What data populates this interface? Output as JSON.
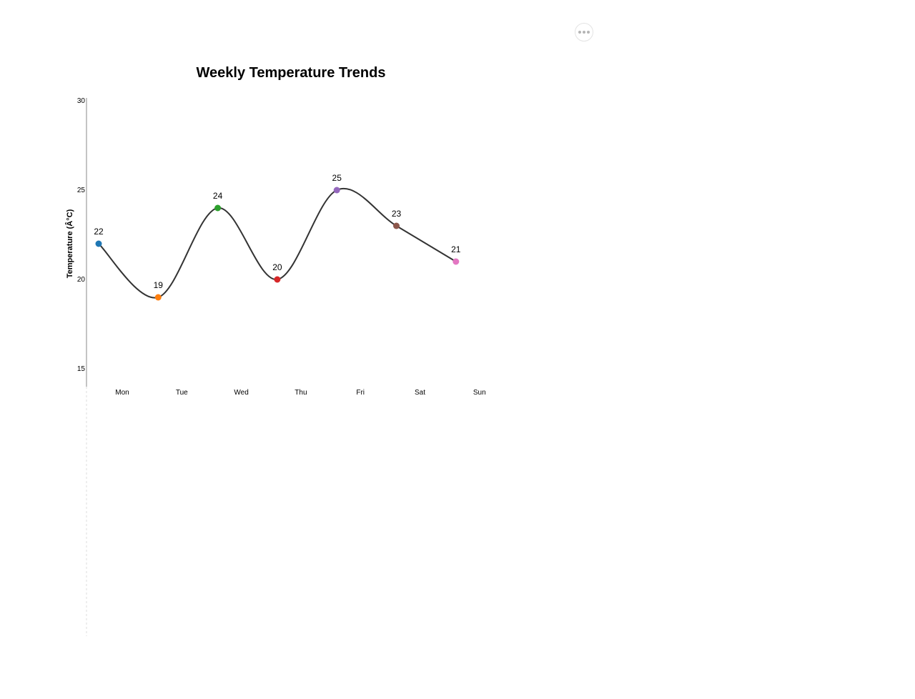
{
  "menu": {
    "icon": "more-horizontal-icon"
  },
  "chart_data": {
    "type": "line",
    "title": "Weekly Temperature Trends",
    "ylabel": "Temperature (Â°C)",
    "xlabel": "",
    "categories": [
      "Mon",
      "Tue",
      "Wed",
      "Thu",
      "Fri",
      "Sat",
      "Sun"
    ],
    "values": [
      22,
      19,
      24,
      20,
      25,
      23,
      21
    ],
    "point_colors": [
      "#1f77b4",
      "#ff7f0e",
      "#2ca02c",
      "#d62728",
      "#9467bd",
      "#8c564b",
      "#e377c2"
    ],
    "line_color": "#333333",
    "ylim": [
      15,
      30
    ],
    "yticks": [
      15,
      20,
      25,
      30
    ],
    "grid": false,
    "legend": "none",
    "data_labels": true
  }
}
